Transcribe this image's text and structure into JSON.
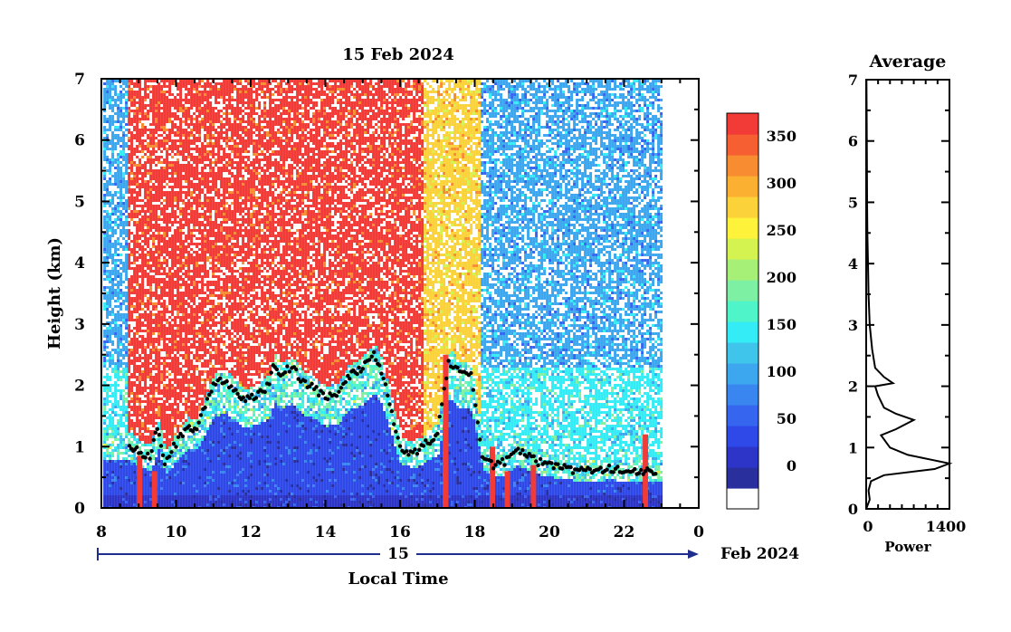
{
  "chart_data": [
    {
      "type": "heatmap",
      "title": "15 Feb 2024",
      "xlabel": "Local Time",
      "ylabel": "Height (km)",
      "xlim": [
        8,
        24
      ],
      "ylim": [
        0,
        7
      ],
      "x_ticks": [
        "8",
        "10",
        "12",
        "14",
        "16",
        "18",
        "20",
        "22",
        "0"
      ],
      "y_ticks": [
        "0",
        "1",
        "2",
        "3",
        "4",
        "5",
        "6",
        "7"
      ],
      "date_bar": {
        "day": "15",
        "month": "Feb 2024"
      },
      "data_end_hour": 23.0,
      "colorbar": {
        "ticks": [
          "0",
          "50",
          "100",
          "150",
          "200",
          "250",
          "300",
          "350"
        ],
        "range": [
          0,
          380
        ],
        "colors": [
          "#ffffff",
          "#2a2f9e",
          "#2c35c8",
          "#2f48e8",
          "#3666f0",
          "#3a86f0",
          "#3ca6ee",
          "#3fc4ec",
          "#33ecf6",
          "#4ff4c8",
          "#7ef0a4",
          "#a6f078",
          "#d4f250",
          "#fef23a",
          "#fcd23a",
          "#fbb032",
          "#f88c30",
          "#f65f32",
          "#f23a36"
        ]
      },
      "layer_height_km": [
        [
          8.75,
          1.05
        ],
        [
          9.0,
          0.9
        ],
        [
          9.3,
          0.85
        ],
        [
          9.5,
          1.3
        ],
        [
          9.7,
          0.75
        ],
        [
          10.0,
          1.05
        ],
        [
          10.3,
          1.3
        ],
        [
          10.5,
          1.25
        ],
        [
          11.0,
          2.0
        ],
        [
          11.3,
          2.1
        ],
        [
          11.6,
          1.9
        ],
        [
          11.8,
          1.75
        ],
        [
          12.2,
          1.85
        ],
        [
          12.5,
          2.0
        ],
        [
          12.6,
          2.35
        ],
        [
          12.8,
          2.2
        ],
        [
          13.1,
          2.3
        ],
        [
          13.4,
          2.05
        ],
        [
          13.7,
          1.95
        ],
        [
          14.0,
          1.8
        ],
        [
          14.3,
          1.85
        ],
        [
          14.6,
          2.15
        ],
        [
          14.8,
          2.2
        ],
        [
          15.0,
          2.3
        ],
        [
          15.3,
          2.5
        ],
        [
          15.5,
          2.25
        ],
        [
          16.0,
          0.95
        ],
        [
          16.4,
          0.9
        ],
        [
          16.8,
          1.1
        ],
        [
          17.0,
          1.2
        ],
        [
          17.3,
          2.4
        ],
        [
          17.6,
          2.2
        ],
        [
          17.9,
          2.15
        ],
        [
          18.2,
          0.85
        ],
        [
          18.5,
          0.7
        ],
        [
          18.8,
          0.75
        ],
        [
          19.1,
          0.95
        ],
        [
          19.4,
          0.85
        ],
        [
          19.7,
          0.75
        ],
        [
          20.0,
          0.7
        ],
        [
          20.4,
          0.65
        ],
        [
          20.8,
          0.6
        ],
        [
          21.2,
          0.6
        ],
        [
          21.6,
          0.65
        ],
        [
          22.0,
          0.6
        ],
        [
          22.4,
          0.6
        ],
        [
          22.9,
          0.6
        ]
      ]
    },
    {
      "type": "line",
      "title": "Average",
      "xlabel": "Power",
      "ylabel": "",
      "xlim": [
        0,
        1400
      ],
      "ylim": [
        0,
        7
      ],
      "x_ticks": [
        "0",
        "1400"
      ],
      "y_ticks": [
        "0",
        "1",
        "2",
        "3",
        "4",
        "5",
        "6",
        "7"
      ],
      "series": [
        {
          "x": [
            0,
            60,
            40,
            80,
            300,
            1150,
            1400,
            1100,
            700,
            400,
            250,
            500,
            800,
            500,
            300,
            200,
            150,
            450,
            300,
            150,
            100,
            60,
            40,
            30,
            20,
            15,
            10,
            5
          ],
          "y": [
            0,
            0.15,
            0.3,
            0.45,
            0.55,
            0.65,
            0.74,
            0.8,
            0.88,
            1.0,
            1.2,
            1.3,
            1.45,
            1.55,
            1.65,
            1.85,
            2.0,
            2.05,
            2.15,
            2.3,
            2.6,
            3.0,
            3.5,
            4.0,
            4.5,
            5.0,
            6.0,
            7.0
          ]
        }
      ]
    }
  ]
}
